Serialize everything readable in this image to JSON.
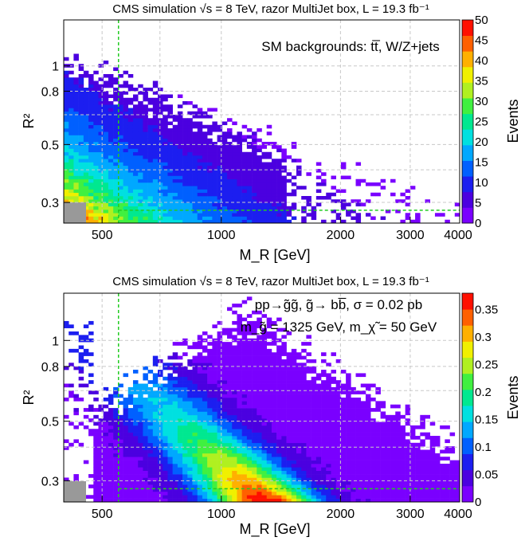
{
  "chart_data": [
    {
      "type": "heatmap",
      "title": "CMS simulation √s = 8 TeV,  razor MultiJet box, L = 19.3 fb⁻¹",
      "annotation_lines": [
        "SM backgrounds: tt̅, W/Z+jets"
      ],
      "xlabel": "M_R [GeV]",
      "ylabel": "R²",
      "zlabel": "Events",
      "x_scale": "log",
      "y_scale": "log",
      "xlim": [
        400,
        4000
      ],
      "ylim": [
        0.25,
        1.5
      ],
      "x_ticks": [
        "500",
        "1000",
        "2000",
        "3000",
        "4000"
      ],
      "y_ticks": [
        "0.3",
        "0.5",
        "0.8",
        "1"
      ],
      "z_range": [
        0,
        50
      ],
      "z_ticks": [
        "0",
        "5",
        "10",
        "15",
        "20",
        "25",
        "30",
        "35",
        "40",
        "45",
        "50"
      ],
      "cut_lines": {
        "mr_min": 550,
        "rsq_min": 0.28
      },
      "peak": {
        "mr": 450,
        "rsq": 0.27,
        "value": 48
      },
      "shape": "qcd"
    },
    {
      "type": "heatmap",
      "title": "CMS simulation √s = 8 TeV,  razor MultiJet box, L = 19.3 fb⁻¹",
      "annotation_lines": [
        "pp→g̃g̃, g̃→ bb̅, σ = 0.02 pb",
        "m_g̃ = 1325 GeV, m_χ̃ = 50 GeV"
      ],
      "xlabel": "M_R [GeV]",
      "ylabel": "R²",
      "zlabel": "Events",
      "x_scale": "log",
      "y_scale": "log",
      "xlim": [
        400,
        4000
      ],
      "ylim": [
        0.25,
        1.5
      ],
      "x_ticks": [
        "500",
        "1000",
        "2000",
        "3000",
        "4000"
      ],
      "y_ticks": [
        "0.3",
        "0.5",
        "0.8",
        "1"
      ],
      "z_range": [
        0,
        0.38
      ],
      "z_ticks": [
        "0",
        "0.05",
        "0.1",
        "0.15",
        "0.2",
        "0.25",
        "0.3",
        "0.35"
      ],
      "cut_lines": {
        "mr_min": 550,
        "rsq_min": 0.28
      },
      "peak": {
        "mr": 1350,
        "rsq": 0.27,
        "value": 0.36
      },
      "shape": "signal"
    }
  ],
  "colors": {
    "palette": [
      "#7a00ff",
      "#4b00e0",
      "#1c1ef0",
      "#0060ff",
      "#00a8ff",
      "#00e0e0",
      "#00e890",
      "#40f040",
      "#b0f020",
      "#f0f000",
      "#ffb000",
      "#ff6000",
      "#ff1000"
    ],
    "grid": "#c8c8c8",
    "cut_line": "#22cc22",
    "gray_box": "#999999"
  }
}
